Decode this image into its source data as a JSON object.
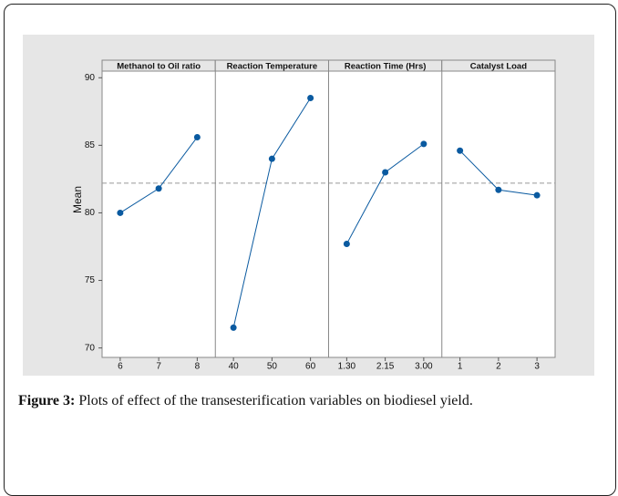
{
  "chart_data": {
    "type": "line",
    "ylabel": "Mean",
    "ylim": [
      69.3,
      91.3
    ],
    "yticks": [
      70,
      75,
      80,
      85,
      90
    ],
    "reference_line": 82.2,
    "color": "#0a5aa0",
    "panels": [
      {
        "title": "Methanol to Oil ratio",
        "categories": [
          "6",
          "7",
          "8"
        ],
        "values": [
          80.0,
          81.8,
          85.6
        ]
      },
      {
        "title": "Reaction Temperature",
        "categories": [
          "40",
          "50",
          "60"
        ],
        "values": [
          71.5,
          84.0,
          88.5
        ]
      },
      {
        "title": "Reaction Time (Hrs)",
        "categories": [
          "1.30",
          "2.15",
          "3.00"
        ],
        "values": [
          77.7,
          83.0,
          85.1
        ]
      },
      {
        "title": "Catalyst Load",
        "categories": [
          "1",
          "2",
          "3"
        ],
        "values": [
          84.6,
          81.7,
          81.3
        ]
      }
    ]
  },
  "caption": {
    "label": "Figure 3:",
    "text": "Plots of effect of the transesterification variables on biodiesel yield."
  }
}
